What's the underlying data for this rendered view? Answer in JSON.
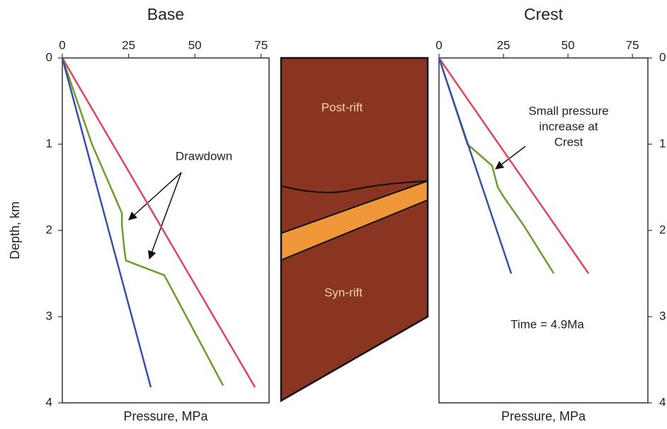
{
  "chart_data": [
    {
      "type": "line",
      "title": "Base",
      "xlabel": "Pressure, MPa",
      "ylabel": "Depth, km",
      "xlim": [
        0,
        78
      ],
      "xticks": [
        0,
        25,
        50,
        75
      ],
      "ylim": [
        0,
        4
      ],
      "yticks": [
        0,
        1,
        2,
        3,
        4
      ],
      "y_inverted": true,
      "yaxis_side": "left",
      "series": [
        {
          "color": "#e0455a",
          "x": [
            0,
            72.7
          ],
          "y": [
            0,
            3.82
          ]
        },
        {
          "color": "#6a9e2e",
          "x": [
            0,
            11.2,
            22.5,
            22.5,
            23.5,
            24,
            38.5,
            60.7
          ],
          "y": [
            0,
            1.0,
            1.8,
            1.95,
            2.25,
            2.35,
            2.52,
            3.8
          ]
        },
        {
          "color": "#3a4fa8",
          "x": [
            0,
            33.4
          ],
          "y": [
            0,
            3.82
          ]
        }
      ],
      "annotations": [
        {
          "text_lines": [
            "Drawdown"
          ]
        }
      ]
    },
    {
      "type": "line",
      "title": "Crest",
      "xlabel": "Pressure, MPa",
      "xlim": [
        0,
        81
      ],
      "xticks": [
        0,
        25,
        50,
        75
      ],
      "ylim": [
        0,
        4
      ],
      "yticks": [
        0,
        1,
        2,
        3,
        4
      ],
      "y_inverted": true,
      "yaxis_side": "right",
      "series": [
        {
          "color": "#e0455a",
          "x": [
            0,
            58
          ],
          "y": [
            0,
            2.5
          ]
        },
        {
          "color": "#6a9e2e",
          "x": [
            0,
            11,
            20.6,
            22.8,
            25.3,
            33,
            44.5
          ],
          "y": [
            0,
            1.0,
            1.25,
            1.5,
            1.62,
            1.95,
            2.5
          ]
        },
        {
          "color": "#3a4fa8",
          "x": [
            0,
            28
          ],
          "y": [
            0,
            2.5
          ]
        }
      ],
      "annotations": [
        {
          "text_lines": [
            "Small pressure",
            "increase at",
            "Crest"
          ]
        },
        {
          "text_lines": [
            "Time = 4.9Ma"
          ]
        }
      ]
    }
  ],
  "diagram": {
    "labels": [
      "Post-rift",
      "Syn-rift"
    ]
  }
}
